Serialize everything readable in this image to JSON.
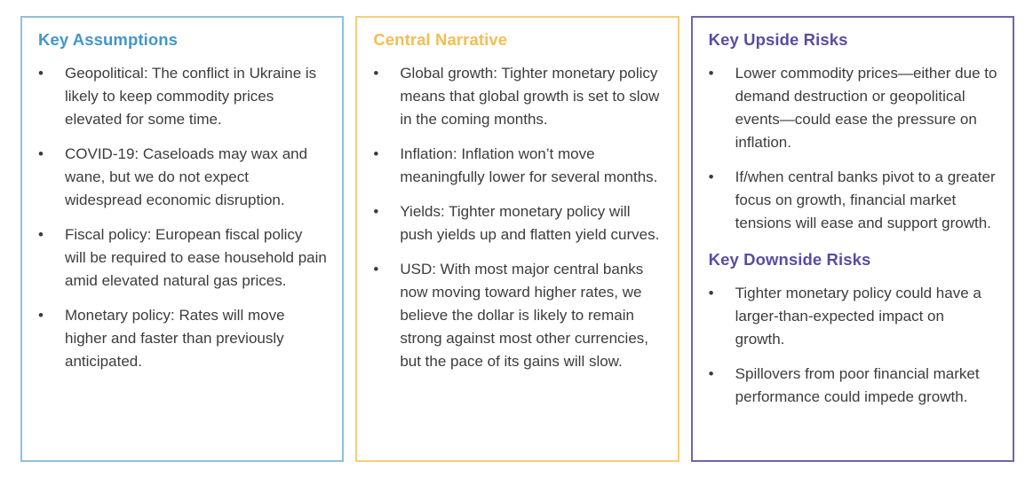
{
  "ui": {
    "bullet_char": "•"
  },
  "colors": {
    "background": "#FFFFFF",
    "body_text": "#3C3C3C",
    "blue_heading": "#4296CD",
    "blue_border": "#8FC0E0",
    "yellow_heading": "#F3BE52",
    "yellow_border": "#F6CF7B",
    "purple_heading": "#594DA3",
    "purple_border": "#6F64AE"
  },
  "panels": [
    {
      "theme": "blue",
      "sections": [
        {
          "heading": "Key Assumptions",
          "bullets": [
            "Geopolitical: The conflict in Ukraine is likely to keep commodity prices elevated for some time.",
            "COVID-19: Caseloads may wax and wane, but we do not expect widespread economic disruption.",
            "Fiscal policy: European fiscal policy will be required to ease household pain amid elevated natural gas prices.",
            "Monetary policy: Rates will move higher and faster than previously anticipated."
          ]
        }
      ]
    },
    {
      "theme": "yellow",
      "sections": [
        {
          "heading": "Central Narrative",
          "bullets": [
            "Global growth: Tighter monetary policy means that global growth is set to slow in the coming months.",
            "Inflation: Inflation won’t move meaningfully lower for several months.",
            "Yields: Tighter monetary policy will push yields up and flatten yield curves.",
            "USD: With most major central banks now moving toward higher rates, we believe the dollar is likely to remain strong against most other currencies, but the pace of its gains will slow."
          ]
        }
      ]
    },
    {
      "theme": "purple",
      "sections": [
        {
          "heading": "Key Upside Risks",
          "bullets": [
            "Lower commodity prices—either due to demand destruction or geopolitical events—could ease the pressure on inflation.",
            "If/when central banks pivot to a greater focus on growth, financial market tensions will ease and support growth."
          ]
        },
        {
          "heading": "Key Downside Risks",
          "bullets": [
            "Tighter monetary policy could have a larger-than-expected impact on growth.",
            "Spillovers from poor financial market performance could impede growth."
          ]
        }
      ]
    }
  ]
}
